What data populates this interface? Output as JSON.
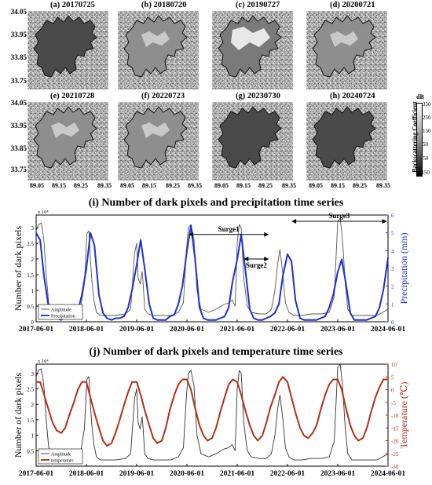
{
  "images": {
    "tiles": [
      {
        "label": "(a) 20170725"
      },
      {
        "label": "(b) 20180720"
      },
      {
        "label": "(c) 20190727"
      },
      {
        "label": "(d) 20200721"
      },
      {
        "label": "(e) 20210728"
      },
      {
        "label": "(f) 20220723"
      },
      {
        "label": "(g) 20230730"
      },
      {
        "label": "(h) 20240724"
      }
    ],
    "lat_ticks": [
      "34.05",
      "33.95",
      "33.85",
      "33.75"
    ],
    "lon_ticks": [
      "89.05",
      "89.15",
      "89.25",
      "89.35"
    ],
    "colorbar": {
      "unit": "dB",
      "label": "Backscattering Coefficient",
      "ticks": [
        "350",
        "250",
        "150",
        "50",
        "-50",
        "-150"
      ]
    }
  },
  "chart_data": [
    {
      "type": "line",
      "title": "(i) Number of dark pixels and precipitation time series",
      "ylabel": "Number of dark pixels",
      "y2label": "Precipitation (mm)",
      "y_multiplier": "x 10⁴",
      "ylim": [
        0,
        3.4
      ],
      "y2lim": [
        0,
        6
      ],
      "yticks": [
        "0",
        "0.5",
        "1",
        "1.5",
        "2",
        "2.5",
        "3"
      ],
      "y2ticks": [
        "0",
        "1",
        "2",
        "3",
        "4",
        "5",
        "6"
      ],
      "x_ticks": [
        "2017-06-01",
        "2018-06-01",
        "2019-06-01",
        "2020-06-01",
        "2021-06-01",
        "2022-06-01",
        "2023-06-01",
        "2024-06-01"
      ],
      "xlim": [
        2017.42,
        2024.42
      ],
      "legend": "bottom-left",
      "annotations": [
        {
          "text": "Surge1",
          "from": 2020.45,
          "to": 2022.05,
          "y": 2.78
        },
        {
          "text": "Surge2",
          "from": 2021.55,
          "to": 2022.05,
          "y": 2.0
        },
        {
          "text": "Surge3",
          "from": 2022.5,
          "to": 2024.4,
          "y": 3.2
        }
      ],
      "series": [
        {
          "name": "Amplitude",
          "color": "#555555",
          "axis": "left",
          "x": [
            2017.42,
            2017.47,
            2017.52,
            2017.55,
            2017.58,
            2017.62,
            2017.67,
            2017.75,
            2017.9,
            2018.05,
            2018.2,
            2018.3,
            2018.38,
            2018.43,
            2018.47,
            2018.5,
            2018.53,
            2018.57,
            2018.62,
            2018.7,
            2018.85,
            2019.0,
            2019.2,
            2019.3,
            2019.38,
            2019.42,
            2019.45,
            2019.49,
            2019.53,
            2019.55,
            2019.58,
            2019.65,
            2019.75,
            2019.9,
            2020.1,
            2020.25,
            2020.35,
            2020.41,
            2020.45,
            2020.5,
            2020.56,
            2020.62,
            2020.7,
            2020.85,
            2021.0,
            2021.15,
            2021.25,
            2021.32,
            2021.38,
            2021.42,
            2021.46,
            2021.5,
            2021.55,
            2021.62,
            2021.7,
            2021.85,
            2022.0,
            2022.1,
            2022.17,
            2022.22,
            2022.27,
            2022.33,
            2022.38,
            2022.45,
            2022.55,
            2022.7,
            2022.9,
            2023.1,
            2023.25,
            2023.35,
            2023.42,
            2023.47,
            2023.52,
            2023.57,
            2023.62,
            2023.7,
            2023.85,
            2024.0,
            2024.2,
            2024.42
          ],
          "values": [
            2.9,
            3.1,
            3.15,
            2.9,
            2.5,
            1.5,
            0.6,
            0.25,
            0.2,
            0.2,
            0.25,
            0.4,
            1.2,
            2.8,
            2.9,
            2.0,
            1.3,
            0.7,
            0.3,
            0.2,
            0.2,
            0.2,
            0.25,
            0.4,
            2.2,
            2.5,
            1.4,
            1.2,
            1.6,
            1.2,
            0.4,
            0.25,
            0.2,
            0.2,
            0.2,
            0.3,
            0.6,
            2.3,
            3.0,
            3.1,
            2.6,
            1.0,
            0.4,
            0.3,
            0.4,
            0.55,
            0.6,
            0.7,
            0.5,
            2.5,
            3.1,
            3.0,
            1.4,
            0.5,
            0.3,
            0.25,
            0.25,
            0.4,
            1.0,
            1.8,
            2.3,
            1.5,
            0.6,
            0.3,
            0.2,
            0.2,
            0.25,
            0.25,
            0.3,
            0.8,
            3.2,
            3.3,
            2.5,
            1.2,
            0.4,
            0.2,
            0.2,
            0.2,
            0.2,
            0.4
          ]
        },
        {
          "name": "Precipitation",
          "color": "#1f2fd0",
          "axis": "right",
          "x": [
            2017.42,
            2017.5,
            2017.58,
            2017.67,
            2017.75,
            2017.83,
            2017.92,
            2018.0,
            2018.08,
            2018.17,
            2018.25,
            2018.33,
            2018.42,
            2018.5,
            2018.58,
            2018.67,
            2018.75,
            2018.83,
            2018.92,
            2019.0,
            2019.08,
            2019.17,
            2019.25,
            2019.33,
            2019.42,
            2019.5,
            2019.58,
            2019.67,
            2019.75,
            2019.83,
            2019.92,
            2020.0,
            2020.08,
            2020.17,
            2020.25,
            2020.33,
            2020.42,
            2020.5,
            2020.58,
            2020.67,
            2020.75,
            2020.83,
            2020.92,
            2021.0,
            2021.08,
            2021.17,
            2021.25,
            2021.33,
            2021.42,
            2021.5,
            2021.58,
            2021.67,
            2021.75,
            2021.83,
            2021.92,
            2022.0,
            2022.08,
            2022.17,
            2022.25,
            2022.33,
            2022.42,
            2022.5,
            2022.58,
            2022.67,
            2022.75,
            2022.83,
            2022.92,
            2023.0,
            2023.08,
            2023.17,
            2023.25,
            2023.33,
            2023.42,
            2023.5,
            2023.58,
            2023.67,
            2023.75,
            2023.83,
            2023.92,
            2024.0,
            2024.08,
            2024.17,
            2024.25,
            2024.33,
            2024.42
          ],
          "values": [
            5.0,
            4.6,
            2.5,
            0.8,
            0.2,
            0.2,
            0.1,
            0.3,
            0.2,
            0.3,
            0.6,
            1.5,
            3.0,
            5.0,
            4.3,
            1.5,
            0.5,
            0.2,
            0.1,
            0.2,
            0.2,
            0.3,
            0.8,
            1.8,
            3.2,
            4.6,
            3.0,
            1.0,
            0.2,
            0.1,
            0.1,
            0.1,
            0.3,
            0.4,
            1.0,
            2.0,
            4.0,
            5.4,
            3.6,
            0.8,
            0.2,
            0.1,
            0.1,
            0.1,
            0.2,
            0.3,
            0.8,
            2.3,
            3.5,
            4.9,
            3.0,
            0.7,
            0.2,
            0.1,
            0.1,
            0.2,
            0.3,
            0.5,
            1.0,
            2.6,
            3.8,
            3.4,
            1.2,
            0.2,
            0.1,
            0.1,
            0.1,
            0.1,
            0.2,
            0.3,
            0.8,
            1.5,
            2.8,
            3.5,
            2.2,
            0.5,
            0.1,
            0.1,
            0.1,
            0.1,
            0.2,
            0.3,
            0.8,
            1.8,
            3.6
          ]
        }
      ]
    },
    {
      "type": "line",
      "title": "(j) Number of dark pixels and temperature time series",
      "ylabel": "Number of dark pixels",
      "y2label": "Temperature (℃)",
      "y_multiplier": "x 10⁴",
      "ylim": [
        0,
        3.3
      ],
      "y2lim": [
        -30,
        10
      ],
      "yticks": [
        "0.5",
        "1",
        "1.5",
        "2",
        "2.5",
        "3"
      ],
      "y2ticks": [
        "10",
        "5",
        "0",
        "-5",
        "-10",
        "-15",
        "-20",
        "-25",
        "-30"
      ],
      "x_ticks": [
        "2017-06-01",
        "2018-06-01",
        "2019-06-01",
        "2020-06-01",
        "2021-06-01",
        "2022-06-01",
        "2023-06-01",
        "2024-06-01"
      ],
      "xlim": [
        2017.42,
        2024.42
      ],
      "legend": "bottom-left",
      "series": [
        {
          "name": "Amplitude",
          "color": "#333333",
          "axis": "left",
          "x": [
            2017.42,
            2017.47,
            2017.52,
            2017.55,
            2017.58,
            2017.62,
            2017.67,
            2017.75,
            2017.9,
            2018.05,
            2018.2,
            2018.3,
            2018.38,
            2018.43,
            2018.47,
            2018.5,
            2018.53,
            2018.57,
            2018.62,
            2018.7,
            2018.85,
            2019.0,
            2019.2,
            2019.3,
            2019.38,
            2019.42,
            2019.45,
            2019.49,
            2019.53,
            2019.55,
            2019.58,
            2019.65,
            2019.75,
            2019.9,
            2020.1,
            2020.25,
            2020.35,
            2020.41,
            2020.45,
            2020.5,
            2020.56,
            2020.62,
            2020.7,
            2020.85,
            2021.0,
            2021.15,
            2021.25,
            2021.32,
            2021.38,
            2021.42,
            2021.46,
            2021.5,
            2021.55,
            2021.62,
            2021.7,
            2021.85,
            2022.0,
            2022.1,
            2022.17,
            2022.22,
            2022.27,
            2022.33,
            2022.38,
            2022.45,
            2022.55,
            2022.7,
            2022.9,
            2023.1,
            2023.25,
            2023.35,
            2023.42,
            2023.47,
            2023.52,
            2023.57,
            2023.62,
            2023.7,
            2023.85,
            2024.0,
            2024.2,
            2024.42
          ],
          "values": [
            2.9,
            3.1,
            3.15,
            2.9,
            2.5,
            1.5,
            0.6,
            0.25,
            0.2,
            0.2,
            0.25,
            0.4,
            1.2,
            2.8,
            2.9,
            2.0,
            1.3,
            0.7,
            0.3,
            0.2,
            0.2,
            0.2,
            0.25,
            0.4,
            2.2,
            2.5,
            1.4,
            1.2,
            1.6,
            1.2,
            0.4,
            0.25,
            0.2,
            0.2,
            0.2,
            0.3,
            0.6,
            2.3,
            3.0,
            3.1,
            2.6,
            1.0,
            0.4,
            0.3,
            0.4,
            0.55,
            0.6,
            0.7,
            0.5,
            2.5,
            3.1,
            3.0,
            1.4,
            0.5,
            0.3,
            0.25,
            0.25,
            0.4,
            1.0,
            1.8,
            2.3,
            1.5,
            0.6,
            0.3,
            0.2,
            0.2,
            0.25,
            0.25,
            0.3,
            0.8,
            3.2,
            3.3,
            2.5,
            1.2,
            0.4,
            0.2,
            0.2,
            0.2,
            0.2,
            0.4
          ]
        },
        {
          "name": "temperature",
          "color": "#b03018",
          "axis": "right",
          "x": [
            2017.42,
            2017.5,
            2017.58,
            2017.67,
            2017.75,
            2017.83,
            2017.92,
            2018.0,
            2018.08,
            2018.17,
            2018.25,
            2018.33,
            2018.42,
            2018.5,
            2018.58,
            2018.67,
            2018.75,
            2018.83,
            2018.92,
            2019.0,
            2019.08,
            2019.17,
            2019.25,
            2019.33,
            2019.42,
            2019.5,
            2019.58,
            2019.67,
            2019.75,
            2019.83,
            2019.92,
            2020.0,
            2020.08,
            2020.17,
            2020.25,
            2020.33,
            2020.42,
            2020.5,
            2020.58,
            2020.67,
            2020.75,
            2020.83,
            2020.92,
            2021.0,
            2021.08,
            2021.17,
            2021.25,
            2021.33,
            2021.42,
            2021.5,
            2021.58,
            2021.67,
            2021.75,
            2021.83,
            2021.92,
            2022.0,
            2022.08,
            2022.17,
            2022.25,
            2022.33,
            2022.42,
            2022.5,
            2022.58,
            2022.67,
            2022.75,
            2022.83,
            2022.92,
            2023.0,
            2023.08,
            2023.17,
            2023.25,
            2023.33,
            2023.42,
            2023.5,
            2023.58,
            2023.67,
            2023.75,
            2023.83,
            2023.92,
            2024.0,
            2024.08,
            2024.17,
            2024.25,
            2024.33,
            2024.42
          ],
          "values": [
            3,
            3,
            -2,
            -8,
            -13,
            -16,
            -17,
            -15,
            -10,
            -5,
            0,
            3,
            3,
            -3,
            -9,
            -15,
            -20,
            -22,
            -21,
            -17,
            -12,
            -6,
            -1,
            3,
            3,
            -2,
            -8,
            -14,
            -19,
            -21,
            -20,
            -15,
            -8,
            -2,
            2,
            4,
            4,
            0,
            -7,
            -14,
            -18,
            -20,
            -19,
            -15,
            -9,
            -3,
            2,
            4,
            3,
            -2,
            -8,
            -14,
            -18,
            -20,
            -18,
            -13,
            -7,
            -2,
            3,
            5,
            3,
            -3,
            -9,
            -15,
            -18,
            -19,
            -17,
            -14,
            -8,
            -2,
            2,
            4,
            4,
            0,
            -7,
            -14,
            -18,
            -20,
            -19,
            -15,
            -9,
            -3,
            1,
            4,
            4
          ]
        }
      ]
    }
  ]
}
